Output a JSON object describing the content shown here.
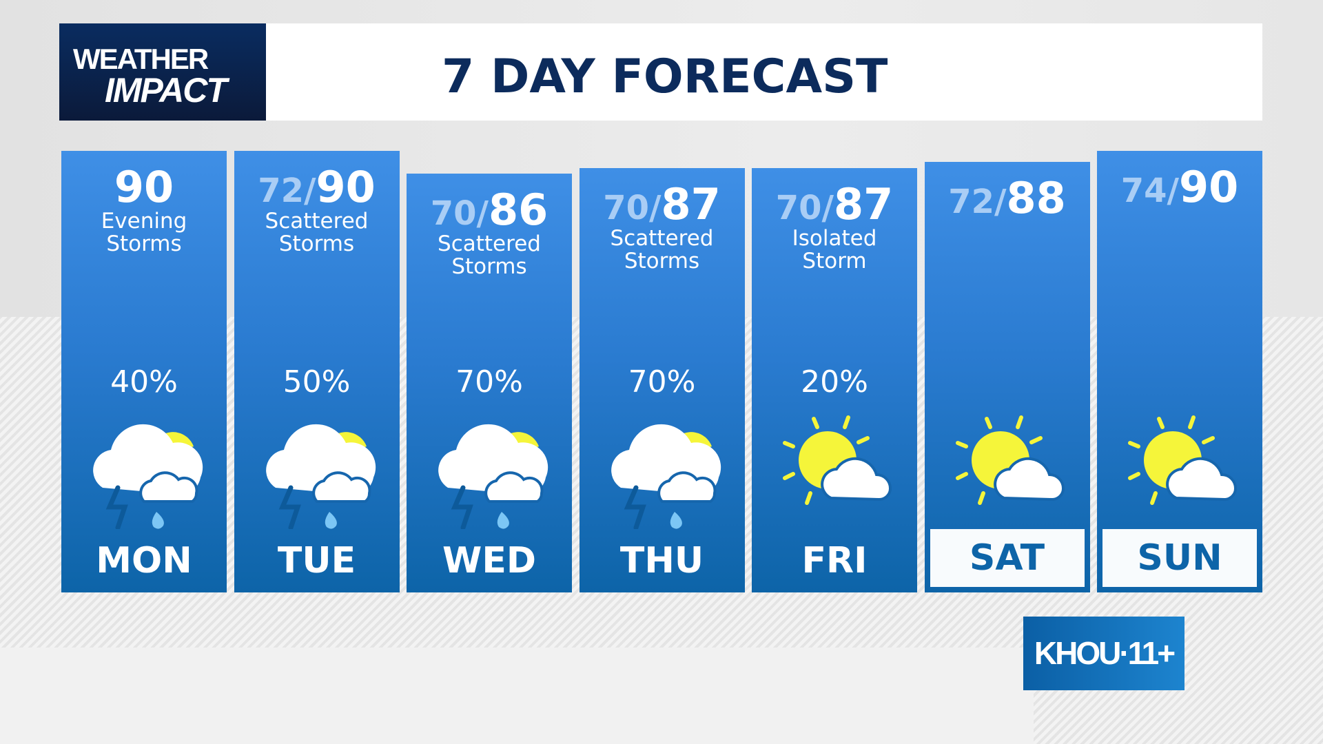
{
  "brand": {
    "logo_line1": "WEATHER",
    "logo_line2": "IMPACT",
    "station": "KHOU·11+"
  },
  "title": "7 DAY FORECAST",
  "colors": {
    "navy": "#0c2b5c",
    "column_top": "#3f8fe6",
    "column_bottom": "#0d64a8",
    "sun": "#f5f53a",
    "rain": "#7cc6f5"
  },
  "days": [
    {
      "day": "MON",
      "low": "",
      "high": "90",
      "condition": [
        "Evening",
        "Storms"
      ],
      "precip": "40%",
      "icon": "storm-partly-sunny-icon"
    },
    {
      "day": "TUE",
      "low": "72/",
      "high": "90",
      "condition": [
        "Scattered",
        "Storms"
      ],
      "precip": "50%",
      "icon": "storm-partly-sunny-icon"
    },
    {
      "day": "WED",
      "low": "70/",
      "high": "86",
      "condition": [
        "Scattered",
        "Storms"
      ],
      "precip": "70%",
      "icon": "storm-partly-sunny-icon"
    },
    {
      "day": "THU",
      "low": "70/",
      "high": "87",
      "condition": [
        "Scattered",
        "Storms"
      ],
      "precip": "70%",
      "icon": "storm-partly-sunny-icon"
    },
    {
      "day": "FRI",
      "low": "70/",
      "high": "87",
      "condition": [
        "Isolated",
        "Storm"
      ],
      "precip": "20%",
      "icon": "partly-sunny-icon"
    },
    {
      "day": "SAT",
      "low": "72/",
      "high": "88",
      "condition": [
        "",
        ""
      ],
      "precip": "",
      "icon": "partly-sunny-icon"
    },
    {
      "day": "SUN",
      "low": "74/",
      "high": "90",
      "condition": [
        "",
        ""
      ],
      "precip": "",
      "icon": "partly-sunny-icon"
    }
  ]
}
